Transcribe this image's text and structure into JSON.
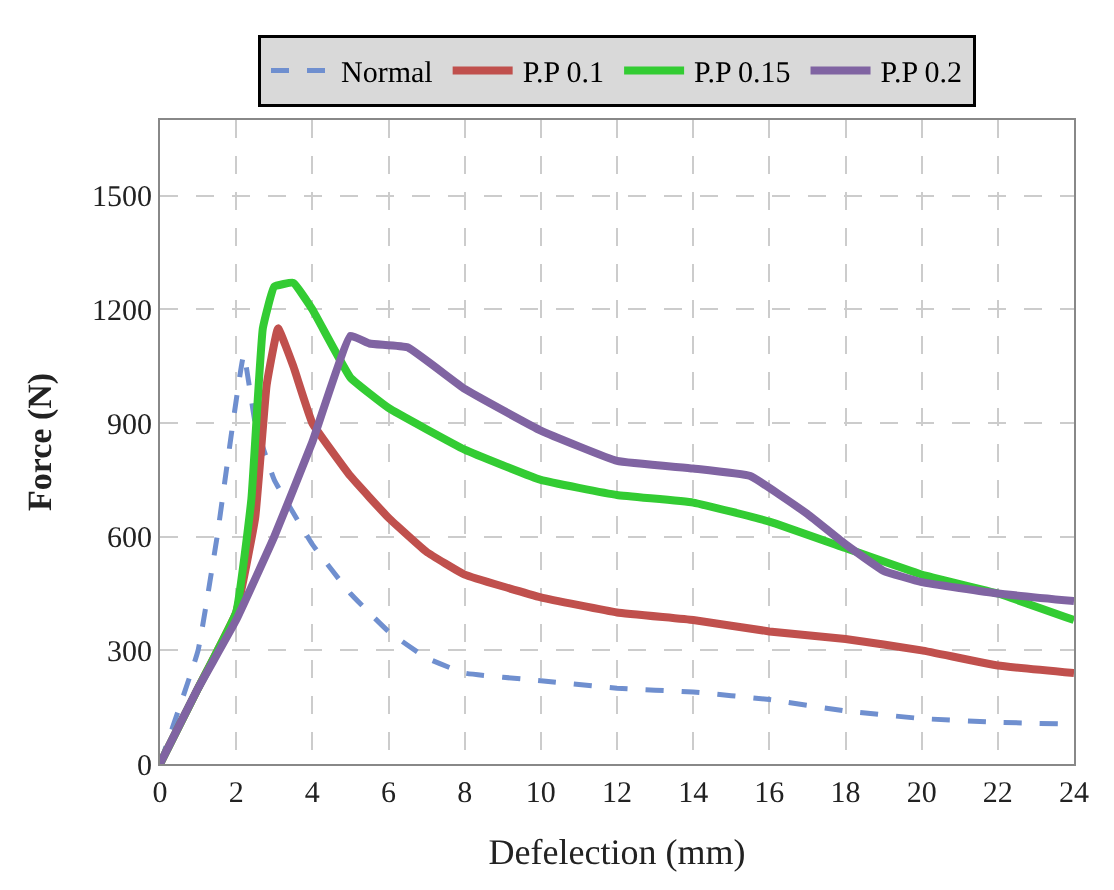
{
  "chart_data": {
    "type": "line",
    "xlabel": "Defelection (mm)",
    "ylabel": "Force (N)",
    "xlim": [
      0,
      24
    ],
    "xticks": [
      0,
      2,
      4,
      6,
      8,
      10,
      12,
      14,
      16,
      18,
      20,
      22,
      24
    ],
    "ylim": [
      0,
      1700
    ],
    "yticks": [
      0,
      300,
      600,
      900,
      1200,
      1500
    ],
    "grid": true,
    "legend": "top",
    "marker": "none",
    "series": [
      {
        "name": "Normal",
        "color": "#6f8fcf",
        "line_style": "dashed",
        "x": [
          0,
          1,
          1.5,
          2.2,
          2.5,
          3,
          4,
          5,
          6,
          7,
          8,
          10,
          12,
          14,
          16,
          18,
          20,
          22,
          24
        ],
        "values": [
          0,
          300,
          600,
          1080,
          900,
          750,
          580,
          450,
          350,
          280,
          240,
          220,
          200,
          190,
          170,
          140,
          120,
          110,
          105
        ]
      },
      {
        "name": "P.P 0.1",
        "color": "#c0504d",
        "line_style": "solid",
        "x": [
          0,
          1,
          2,
          2.5,
          2.8,
          3.1,
          3.5,
          4,
          5,
          6,
          7,
          8,
          10,
          12,
          14,
          16,
          18,
          20,
          22,
          24
        ],
        "values": [
          0,
          200,
          400,
          650,
          1000,
          1150,
          1050,
          900,
          760,
          650,
          560,
          500,
          440,
          400,
          380,
          350,
          330,
          300,
          260,
          240
        ]
      },
      {
        "name": "P.P 0.15",
        "color": "#33cc33",
        "line_style": "solid",
        "x": [
          0,
          1,
          2,
          2.4,
          2.7,
          3,
          3.5,
          4,
          5,
          6,
          8,
          10,
          12,
          14,
          16,
          18,
          20,
          22,
          24
        ],
        "values": [
          0,
          200,
          400,
          700,
          1150,
          1260,
          1270,
          1200,
          1020,
          940,
          830,
          750,
          710,
          690,
          640,
          570,
          500,
          450,
          380
        ]
      },
      {
        "name": "P.P 0.2",
        "color": "#8064a2",
        "line_style": "solid",
        "x": [
          0,
          1,
          2,
          3,
          4,
          5,
          5.5,
          6.5,
          8,
          10,
          12,
          14,
          15.5,
          17,
          18,
          19,
          20,
          22,
          24
        ],
        "values": [
          0,
          200,
          380,
          600,
          850,
          1130,
          1110,
          1100,
          990,
          880,
          800,
          780,
          760,
          660,
          580,
          510,
          480,
          450,
          430
        ]
      }
    ]
  }
}
